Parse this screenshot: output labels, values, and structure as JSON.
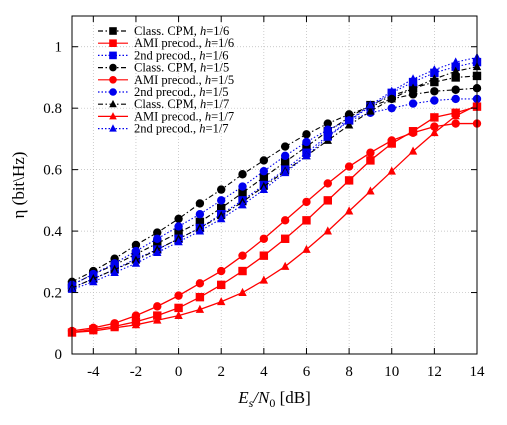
{
  "chart_data": {
    "type": "line",
    "xlabel": {
      "main": "E",
      "sub1": "s",
      "mid": "/N",
      "sub2": "0",
      "unit": " [dB]"
    },
    "ylabel": "η (bit\\Hz)",
    "xlim": [
      -5,
      14
    ],
    "ylim": [
      0,
      1.1
    ],
    "xticks": [
      -4,
      -2,
      0,
      2,
      4,
      6,
      8,
      10,
      12,
      14
    ],
    "yticks": [
      0,
      0.2,
      0.4,
      0.6,
      0.8,
      1
    ],
    "ytick_labels": [
      "0",
      "0.2",
      "0.4",
      "0.6",
      "0.8",
      "1"
    ],
    "legend_position": "top-left",
    "series": [
      {
        "name": "Class. CPM, ",
        "h": "1/6",
        "color": "#000000",
        "marker": "square",
        "dash": "dashdot",
        "x": [
          -5,
          -4,
          -3,
          -2,
          -1,
          0,
          1,
          2,
          3,
          4,
          5,
          6,
          7,
          8,
          9,
          10,
          11,
          12,
          13,
          14
        ],
        "y": [
          0.225,
          0.26,
          0.29,
          0.325,
          0.36,
          0.395,
          0.43,
          0.475,
          0.525,
          0.575,
          0.625,
          0.675,
          0.725,
          0.77,
          0.81,
          0.84,
          0.865,
          0.885,
          0.9,
          0.905
        ]
      },
      {
        "name": "AMI precod., ",
        "h": "1/6",
        "color": "#ff0000",
        "marker": "square",
        "dash": "solid",
        "x": [
          -5,
          -4,
          -3,
          -2,
          -1,
          0,
          1,
          2,
          3,
          4,
          5,
          6,
          7,
          8,
          9,
          10,
          11,
          12,
          13,
          14
        ],
        "y": [
          0.07,
          0.08,
          0.09,
          0.105,
          0.125,
          0.15,
          0.185,
          0.225,
          0.27,
          0.32,
          0.375,
          0.435,
          0.5,
          0.565,
          0.63,
          0.685,
          0.725,
          0.77,
          0.785,
          0.805
        ]
      },
      {
        "name": "2nd precod., ",
        "h": "1/6",
        "color": "#0000ee",
        "marker": "square",
        "dash": "dotted",
        "x": [
          -5,
          -4,
          -3,
          -2,
          -1,
          0,
          1,
          2,
          3,
          4,
          5,
          6,
          7,
          8,
          9,
          10,
          11,
          12,
          13,
          14
        ],
        "y": [
          0.215,
          0.245,
          0.275,
          0.31,
          0.34,
          0.375,
          0.41,
          0.455,
          0.5,
          0.55,
          0.6,
          0.655,
          0.71,
          0.76,
          0.805,
          0.85,
          0.885,
          0.915,
          0.935,
          0.95
        ]
      },
      {
        "name": "Class. CPM, ",
        "h": "1/5",
        "color": "#000000",
        "marker": "circle",
        "dash": "dashdot",
        "x": [
          -5,
          -4,
          -3,
          -2,
          -1,
          0,
          1,
          2,
          3,
          4,
          5,
          6,
          7,
          8,
          9,
          10,
          11,
          12,
          13,
          14
        ],
        "y": [
          0.235,
          0.27,
          0.31,
          0.355,
          0.395,
          0.44,
          0.49,
          0.535,
          0.585,
          0.63,
          0.675,
          0.715,
          0.75,
          0.78,
          0.805,
          0.83,
          0.845,
          0.855,
          0.86,
          0.865
        ]
      },
      {
        "name": "AMI precod., ",
        "h": "1/5",
        "color": "#ff0000",
        "marker": "circle",
        "dash": "solid",
        "x": [
          -5,
          -4,
          -3,
          -2,
          -1,
          0,
          1,
          2,
          3,
          4,
          5,
          6,
          7,
          8,
          9,
          10,
          11,
          12,
          13,
          14
        ],
        "y": [
          0.075,
          0.085,
          0.1,
          0.125,
          0.155,
          0.19,
          0.23,
          0.27,
          0.32,
          0.375,
          0.435,
          0.495,
          0.555,
          0.61,
          0.655,
          0.695,
          0.72,
          0.74,
          0.75,
          0.75
        ]
      },
      {
        "name": "2nd precod., ",
        "h": "1/5",
        "color": "#0000ee",
        "marker": "circle",
        "dash": "dotted",
        "x": [
          -5,
          -4,
          -3,
          -2,
          -1,
          0,
          1,
          2,
          3,
          4,
          5,
          6,
          7,
          8,
          9,
          10,
          11,
          12,
          13,
          14
        ],
        "y": [
          0.225,
          0.26,
          0.295,
          0.335,
          0.375,
          0.415,
          0.455,
          0.5,
          0.545,
          0.595,
          0.645,
          0.69,
          0.73,
          0.76,
          0.785,
          0.8,
          0.815,
          0.825,
          0.83,
          0.83
        ]
      },
      {
        "name": "Class. CPM, ",
        "h": "1/7",
        "color": "#000000",
        "marker": "triangle",
        "dash": "dashdot",
        "x": [
          -5,
          -4,
          -3,
          -2,
          -1,
          0,
          1,
          2,
          3,
          4,
          5,
          6,
          7,
          8,
          9,
          10,
          11,
          12,
          13,
          14
        ],
        "y": [
          0.215,
          0.245,
          0.275,
          0.305,
          0.34,
          0.375,
          0.41,
          0.45,
          0.495,
          0.545,
          0.595,
          0.645,
          0.695,
          0.745,
          0.79,
          0.83,
          0.865,
          0.895,
          0.92,
          0.935
        ]
      },
      {
        "name": "AMI precod., ",
        "h": "1/7",
        "color": "#ff0000",
        "marker": "triangle",
        "dash": "solid",
        "x": [
          -5,
          -4,
          -3,
          -2,
          -1,
          0,
          1,
          2,
          3,
          4,
          5,
          6,
          7,
          8,
          9,
          10,
          11,
          12,
          13,
          14
        ],
        "y": [
          0.07,
          0.075,
          0.085,
          0.095,
          0.11,
          0.125,
          0.145,
          0.17,
          0.2,
          0.24,
          0.285,
          0.34,
          0.4,
          0.465,
          0.53,
          0.595,
          0.66,
          0.72,
          0.775,
          0.81
        ]
      },
      {
        "name": "2nd precod., ",
        "h": "1/7",
        "color": "#0000ee",
        "marker": "triangle",
        "dash": "dotted",
        "x": [
          -5,
          -4,
          -3,
          -2,
          -1,
          0,
          1,
          2,
          3,
          4,
          5,
          6,
          7,
          8,
          9,
          10,
          11,
          12,
          13,
          14
        ],
        "y": [
          0.21,
          0.235,
          0.265,
          0.295,
          0.33,
          0.365,
          0.4,
          0.44,
          0.485,
          0.535,
          0.59,
          0.645,
          0.705,
          0.76,
          0.81,
          0.855,
          0.895,
          0.925,
          0.95,
          0.965
        ]
      }
    ]
  }
}
